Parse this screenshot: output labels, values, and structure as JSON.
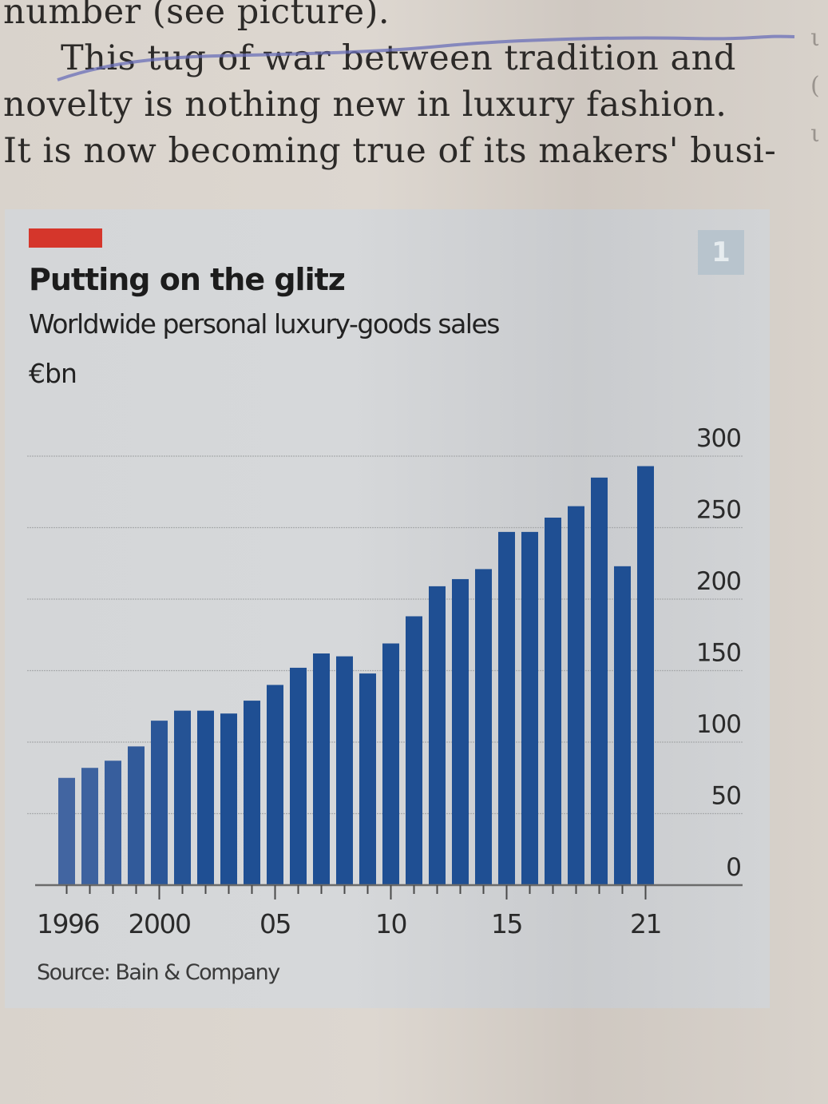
{
  "article": {
    "lines": [
      "number (see picture).",
      "This tug of war between tradition and",
      "novelty is nothing new in luxury fashion.",
      "It is now becoming true of its makers' busi-"
    ]
  },
  "chart_meta": {
    "number_badge": "1",
    "accent_color": "#d5362b",
    "bar_color": "#1f4f93",
    "source": "Source: Bain & Company"
  },
  "chart_data": {
    "type": "bar",
    "title": "Putting on the glitz",
    "subtitle": "Worldwide personal luxury-goods sales",
    "unit": "€bn",
    "xlabel": "",
    "ylabel": "€bn",
    "ylim": [
      0,
      300
    ],
    "yticks": [
      0,
      50,
      100,
      150,
      200,
      250,
      300
    ],
    "y_axis_position": "right",
    "grid": true,
    "legend": "none",
    "x_tick_labels": [
      {
        "year": 1996,
        "label": "1996"
      },
      {
        "year": 2000,
        "label": "2000"
      },
      {
        "year": 2005,
        "label": "05"
      },
      {
        "year": 2010,
        "label": "10"
      },
      {
        "year": 2015,
        "label": "15"
      },
      {
        "year": 2021,
        "label": "21"
      }
    ],
    "categories": [
      "1996",
      "1997",
      "1998",
      "1999",
      "2000",
      "2001",
      "2002",
      "2003",
      "2004",
      "2005",
      "2006",
      "2007",
      "2008",
      "2009",
      "2010",
      "2011",
      "2012",
      "2013",
      "2014",
      "2015",
      "2016",
      "2017",
      "2018",
      "2019",
      "2020",
      "2021"
    ],
    "values": [
      75,
      82,
      87,
      97,
      115,
      122,
      122,
      120,
      129,
      140,
      152,
      162,
      160,
      148,
      169,
      188,
      209,
      214,
      221,
      247,
      247,
      257,
      265,
      285,
      223,
      293
    ],
    "source": "Bain & Company"
  }
}
